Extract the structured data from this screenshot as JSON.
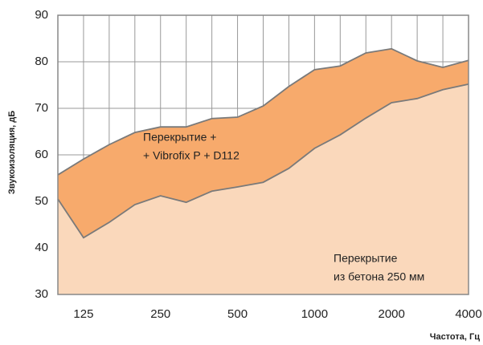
{
  "chart_data": {
    "type": "area",
    "y_label": "Звукоизоляция, дБ",
    "x_label": "Частота, Гц",
    "categories": [
      null,
      "125",
      null,
      null,
      "250",
      null,
      null,
      "500",
      null,
      null,
      "1000",
      null,
      null,
      "2000",
      null,
      null,
      "4000"
    ],
    "series": [
      {
        "color": "#f7aa6c",
        "values": [
          55.7,
          59.1,
          62.2,
          64.8,
          66.0,
          66.0,
          67.8,
          68.1,
          70.5,
          74.7,
          78.3,
          79.1,
          81.9,
          82.8,
          80.2,
          78.8,
          80.3
        ]
      },
      {
        "color": "#fad8bb",
        "values": [
          50.5,
          42.2,
          45.5,
          49.3,
          51.2,
          49.8,
          52.2,
          53.1,
          54.1,
          57.1,
          61.4,
          64.3,
          67.9,
          71.2,
          72.1,
          74.0,
          75.2
        ]
      }
    ],
    "annotations": [
      {
        "lines": [
          "Перекрытие +",
          "+ Vibrofix P + D112"
        ]
      },
      {
        "lines": [
          "Перекрытие",
          "из бетона 250 мм"
        ]
      }
    ],
    "ylim": [
      30,
      90
    ],
    "yticks": [
      30,
      40,
      50,
      60,
      70,
      80,
      90
    ],
    "grid": true
  }
}
